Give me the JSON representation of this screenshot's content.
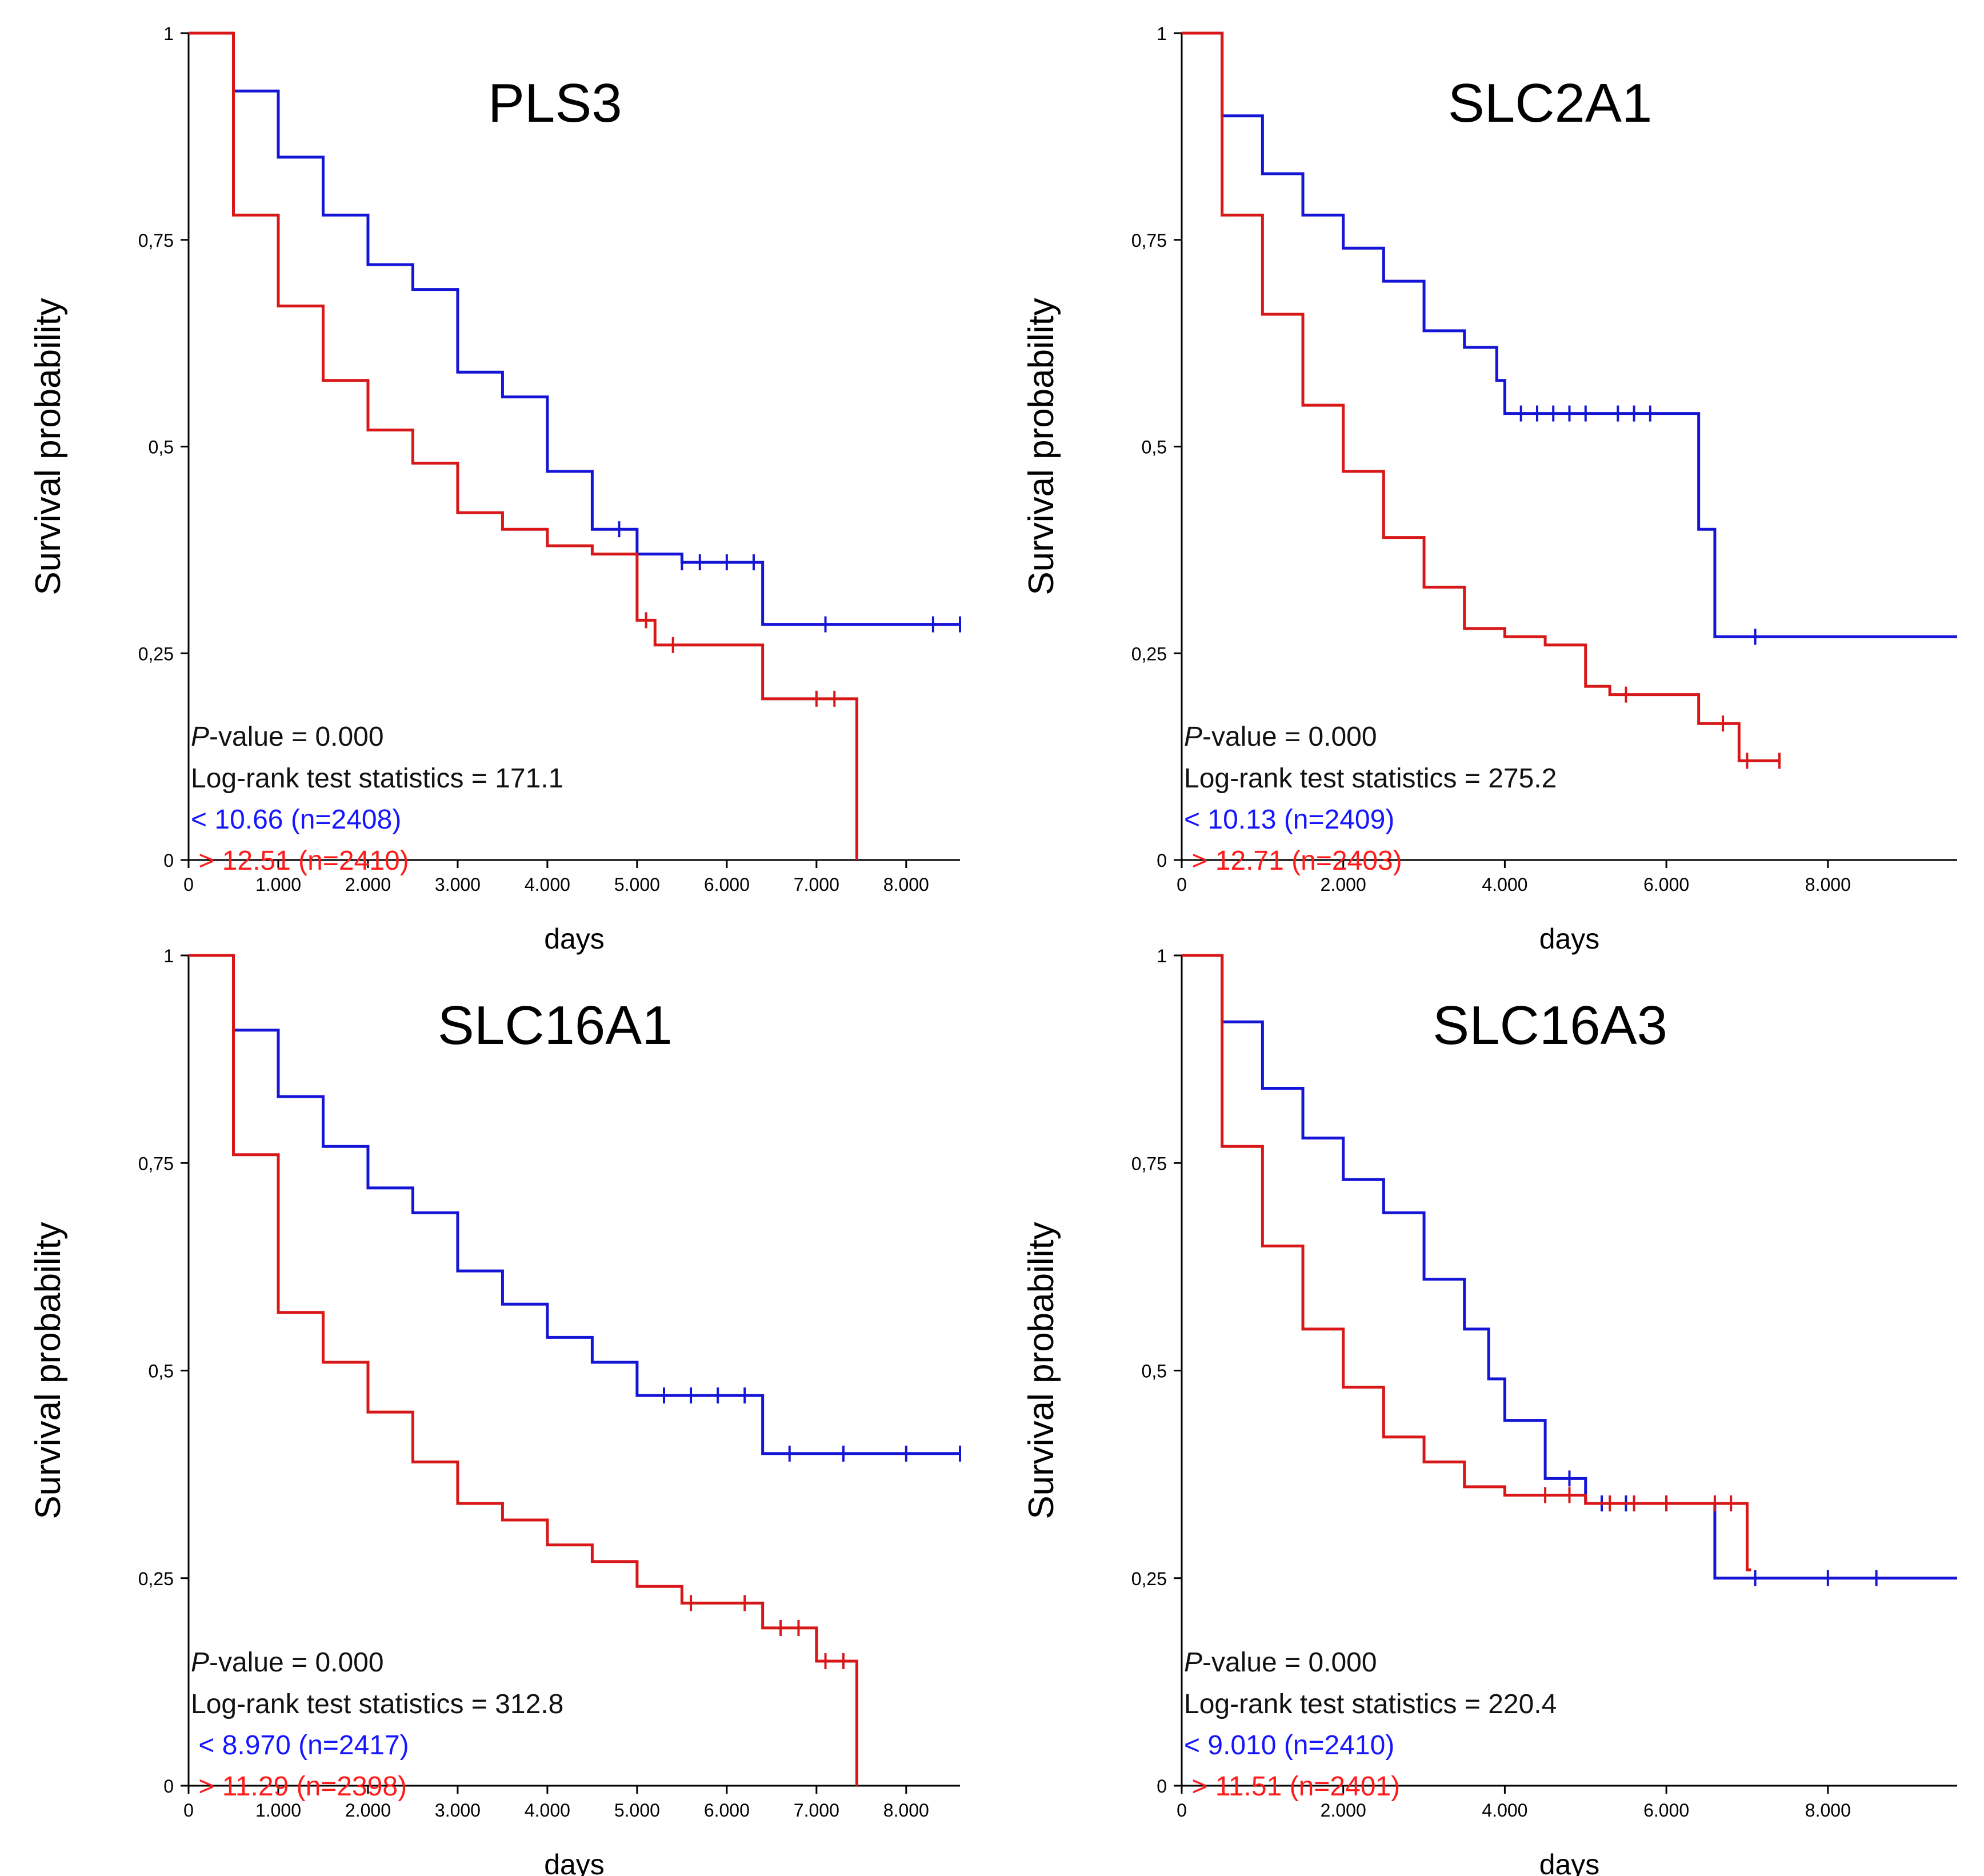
{
  "chart_data": [
    {
      "type": "line",
      "title": "PLS3",
      "xlabel": "days",
      "ylabel": "Survival probability",
      "xlim": [
        0,
        8600
      ],
      "ylim": [
        0,
        1
      ],
      "xticks": [
        0,
        1000,
        2000,
        3000,
        4000,
        5000,
        6000,
        7000,
        8000
      ],
      "xtick_labels": [
        "0",
        "1.000",
        "2.000",
        "3.000",
        "4.000",
        "5.000",
        "6.000",
        "7.000",
        "8.000"
      ],
      "yticks": [
        0,
        0.25,
        0.5,
        0.75,
        1
      ],
      "ytick_labels": [
        "0",
        "0,25",
        "0,5",
        "0,75",
        "1"
      ],
      "pvalue_prefix": "P",
      "pvalue_suffix": "-value = 0.000",
      "logrank": "Log-rank test statistics = 171.1",
      "legend": {
        "low": "< 10.66 (n=2408)",
        "high": " > 12.51 (n=2410)"
      },
      "series": [
        {
          "name": "low",
          "color": "#1515d6",
          "steps": [
            [
              0,
              1
            ],
            [
              500,
              0.93
            ],
            [
              1000,
              0.85
            ],
            [
              1500,
              0.78
            ],
            [
              2000,
              0.72
            ],
            [
              2500,
              0.69
            ],
            [
              3000,
              0.59
            ],
            [
              3500,
              0.56
            ],
            [
              4000,
              0.47
            ],
            [
              4500,
              0.4
            ],
            [
              5000,
              0.37
            ],
            [
              5500,
              0.36
            ],
            [
              6000,
              0.36
            ],
            [
              6400,
              0.36
            ],
            [
              6400,
              0.285
            ],
            [
              8600,
              0.285
            ]
          ],
          "censor": [
            4800,
            5000,
            5500,
            5700,
            6000,
            6300,
            7100,
            8300,
            8600
          ]
        },
        {
          "name": "high",
          "color": "#d81818",
          "steps": [
            [
              0,
              1
            ],
            [
              500,
              0.78
            ],
            [
              1000,
              0.67
            ],
            [
              1500,
              0.58
            ],
            [
              2000,
              0.52
            ],
            [
              2500,
              0.48
            ],
            [
              3000,
              0.42
            ],
            [
              3500,
              0.4
            ],
            [
              4000,
              0.38
            ],
            [
              4500,
              0.37
            ],
            [
              5000,
              0.29
            ],
            [
              5200,
              0.26
            ],
            [
              6400,
              0.26
            ],
            [
              6400,
              0.195
            ],
            [
              7450,
              0.195
            ],
            [
              7450,
              0
            ]
          ],
          "censor": [
            5100,
            5400,
            7000,
            7200
          ]
        }
      ]
    },
    {
      "type": "line",
      "title": "SLC2A1",
      "xlabel": "days",
      "ylabel": "Survival probability",
      "xlim": [
        0,
        9600
      ],
      "ylim": [
        0,
        1
      ],
      "xticks": [
        0,
        2000,
        4000,
        6000,
        8000
      ],
      "xtick_labels": [
        "0",
        "2.000",
        "4.000",
        "6.000",
        "8.000"
      ],
      "yticks": [
        0,
        0.25,
        0.5,
        0.75,
        1
      ],
      "ytick_labels": [
        "0",
        "0,25",
        "0,5",
        "0,75",
        "1"
      ],
      "pvalue_prefix": "P",
      "pvalue_suffix": "-value = 0.000",
      "logrank": "Log-rank test statistics = 275.2",
      "legend": {
        "low": "< 10.13 (n=2409)",
        "high": " > 12.71 (n=2403)"
      },
      "series": [
        {
          "name": "low",
          "color": "#1515d6",
          "steps": [
            [
              0,
              1
            ],
            [
              500,
              0.9
            ],
            [
              1000,
              0.83
            ],
            [
              1500,
              0.78
            ],
            [
              2000,
              0.74
            ],
            [
              2500,
              0.7
            ],
            [
              3000,
              0.64
            ],
            [
              3500,
              0.62
            ],
            [
              3900,
              0.58
            ],
            [
              4000,
              0.54
            ],
            [
              6400,
              0.54
            ],
            [
              6400,
              0.4
            ],
            [
              6600,
              0.4
            ],
            [
              6600,
              0.27
            ],
            [
              9600,
              0.27
            ]
          ],
          "censor": [
            4200,
            4400,
            4600,
            4800,
            5000,
            5400,
            5600,
            5800,
            7100
          ]
        },
        {
          "name": "high",
          "color": "#d81818",
          "steps": [
            [
              0,
              1
            ],
            [
              500,
              0.78
            ],
            [
              1000,
              0.66
            ],
            [
              1500,
              0.55
            ],
            [
              2000,
              0.47
            ],
            [
              2500,
              0.39
            ],
            [
              3000,
              0.33
            ],
            [
              3500,
              0.28
            ],
            [
              4000,
              0.27
            ],
            [
              4500,
              0.26
            ],
            [
              5000,
              0.21
            ],
            [
              5300,
              0.2
            ],
            [
              6300,
              0.2
            ],
            [
              6400,
              0.165
            ],
            [
              6800,
              0.165
            ],
            [
              6900,
              0.12
            ],
            [
              7400,
              0.12
            ]
          ],
          "censor": [
            5500,
            6700,
            7000,
            7400
          ]
        }
      ]
    },
    {
      "type": "line",
      "title": "SLC16A1",
      "xlabel": "days",
      "ylabel": "Survival probability",
      "xlim": [
        0,
        8600
      ],
      "ylim": [
        0,
        1
      ],
      "xticks": [
        0,
        1000,
        2000,
        3000,
        4000,
        5000,
        6000,
        7000,
        8000
      ],
      "xtick_labels": [
        "0",
        "1.000",
        "2.000",
        "3.000",
        "4.000",
        "5.000",
        "6.000",
        "7.000",
        "8.000"
      ],
      "yticks": [
        0,
        0.25,
        0.5,
        0.75,
        1
      ],
      "ytick_labels": [
        "0",
        "0,25",
        "0,5",
        "0,75",
        "1"
      ],
      "pvalue_prefix": "P",
      "pvalue_suffix": "-value = 0.000",
      "logrank": "Log-rank test statistics = 312.8",
      "legend": {
        "low": " < 8.970 (n=2417)",
        "high": " > 11.29 (n=2398)"
      },
      "series": [
        {
          "name": "low",
          "color": "#1515d6",
          "steps": [
            [
              0,
              1
            ],
            [
              500,
              0.91
            ],
            [
              1000,
              0.83
            ],
            [
              1500,
              0.77
            ],
            [
              2000,
              0.72
            ],
            [
              2500,
              0.69
            ],
            [
              3000,
              0.62
            ],
            [
              3500,
              0.58
            ],
            [
              4000,
              0.54
            ],
            [
              4500,
              0.51
            ],
            [
              5000,
              0.47
            ],
            [
              6400,
              0.47
            ],
            [
              6400,
              0.4
            ],
            [
              8600,
              0.4
            ]
          ],
          "censor": [
            5300,
            5600,
            5900,
            6200,
            6700,
            7300,
            8000,
            8600
          ]
        },
        {
          "name": "high",
          "color": "#d81818",
          "steps": [
            [
              0,
              1
            ],
            [
              500,
              0.76
            ],
            [
              1000,
              0.57
            ],
            [
              1500,
              0.51
            ],
            [
              2000,
              0.45
            ],
            [
              2500,
              0.39
            ],
            [
              3000,
              0.34
            ],
            [
              3500,
              0.32
            ],
            [
              4000,
              0.29
            ],
            [
              4500,
              0.27
            ],
            [
              5000,
              0.24
            ],
            [
              5500,
              0.22
            ],
            [
              6300,
              0.22
            ],
            [
              6400,
              0.19
            ],
            [
              7000,
              0.19
            ],
            [
              7000,
              0.15
            ],
            [
              7450,
              0.15
            ],
            [
              7450,
              0
            ]
          ],
          "censor": [
            5600,
            6200,
            6600,
            6800,
            7100,
            7300
          ]
        }
      ]
    },
    {
      "type": "line",
      "title": "SLC16A3",
      "xlabel": "days",
      "ylabel": "Survival probability",
      "xlim": [
        0,
        9600
      ],
      "ylim": [
        0,
        1
      ],
      "xticks": [
        0,
        2000,
        4000,
        6000,
        8000
      ],
      "xtick_labels": [
        "0",
        "2.000",
        "4.000",
        "6.000",
        "8.000"
      ],
      "yticks": [
        0,
        0.25,
        0.5,
        0.75,
        1
      ],
      "ytick_labels": [
        "0",
        "0,25",
        "0,5",
        "0,75",
        "1"
      ],
      "pvalue_prefix": "P",
      "pvalue_suffix": "-value = 0.000",
      "logrank": "Log-rank test statistics = 220.4",
      "legend": {
        "low": "< 9.010 (n=2410)",
        "high": " > 11.51 (n=2401)"
      },
      "series": [
        {
          "name": "low",
          "color": "#1515d6",
          "steps": [
            [
              0,
              1
            ],
            [
              500,
              0.92
            ],
            [
              1000,
              0.84
            ],
            [
              1500,
              0.78
            ],
            [
              2000,
              0.73
            ],
            [
              2500,
              0.69
            ],
            [
              3000,
              0.61
            ],
            [
              3500,
              0.55
            ],
            [
              3800,
              0.49
            ],
            [
              4000,
              0.44
            ],
            [
              4500,
              0.37
            ],
            [
              5000,
              0.34
            ],
            [
              6600,
              0.34
            ],
            [
              6600,
              0.25
            ],
            [
              9600,
              0.25
            ]
          ],
          "censor": [
            4800,
            5200,
            5500,
            6000,
            7100,
            8000,
            8600
          ]
        },
        {
          "name": "high",
          "color": "#d81818",
          "steps": [
            [
              0,
              1
            ],
            [
              500,
              0.77
            ],
            [
              1000,
              0.65
            ],
            [
              1500,
              0.55
            ],
            [
              2000,
              0.48
            ],
            [
              2500,
              0.42
            ],
            [
              3000,
              0.39
            ],
            [
              3500,
              0.36
            ],
            [
              4000,
              0.35
            ],
            [
              5000,
              0.34
            ],
            [
              6900,
              0.34
            ],
            [
              7000,
              0.26
            ],
            [
              7050,
              0.26
            ]
          ],
          "censor": [
            4500,
            4800,
            5300,
            5600,
            6000,
            6600,
            6800
          ]
        }
      ]
    }
  ]
}
